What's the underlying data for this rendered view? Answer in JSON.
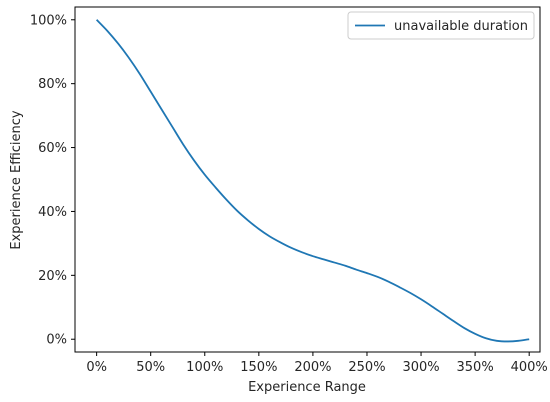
{
  "chart_data": {
    "type": "line",
    "xlabel": "Experience Range",
    "ylabel": "Experience Efficiency",
    "xlim": [
      -0.2,
      4.1
    ],
    "ylim": [
      -0.04,
      1.04
    ],
    "x_ticks": [
      {
        "value": 0.0,
        "label": "0%"
      },
      {
        "value": 0.5,
        "label": "50%"
      },
      {
        "value": 1.0,
        "label": "100%"
      },
      {
        "value": 1.5,
        "label": "150%"
      },
      {
        "value": 2.0,
        "label": "200%"
      },
      {
        "value": 2.5,
        "label": "250%"
      },
      {
        "value": 3.0,
        "label": "300%"
      },
      {
        "value": 3.5,
        "label": "350%"
      },
      {
        "value": 4.0,
        "label": "400%"
      }
    ],
    "y_ticks": [
      {
        "value": 0.0,
        "label": "0%"
      },
      {
        "value": 0.2,
        "label": "20%"
      },
      {
        "value": 0.4,
        "label": "40%"
      },
      {
        "value": 0.6,
        "label": "60%"
      },
      {
        "value": 0.8,
        "label": "80%"
      },
      {
        "value": 1.0,
        "label": "100%"
      }
    ],
    "grid": false,
    "legend_position": "top-right",
    "series": [
      {
        "name": "unavailable duration",
        "color": "#1f77b4",
        "x": [
          0.0,
          0.1,
          0.2,
          0.3,
          0.4,
          0.5,
          0.6,
          0.7,
          0.8,
          0.9,
          1.0,
          1.1,
          1.2,
          1.3,
          1.4,
          1.5,
          1.6,
          1.7,
          1.8,
          1.9,
          2.0,
          2.1,
          2.2,
          2.3,
          2.4,
          2.5,
          2.6,
          2.7,
          2.8,
          2.9,
          3.0,
          3.1,
          3.2,
          3.3,
          3.4,
          3.5,
          3.6,
          3.7,
          3.8,
          3.9,
          4.0
        ],
        "y": [
          1.0,
          0.965,
          0.925,
          0.88,
          0.83,
          0.775,
          0.72,
          0.665,
          0.61,
          0.56,
          0.515,
          0.475,
          0.437,
          0.402,
          0.372,
          0.345,
          0.322,
          0.303,
          0.286,
          0.272,
          0.26,
          0.25,
          0.24,
          0.23,
          0.218,
          0.207,
          0.195,
          0.18,
          0.163,
          0.145,
          0.125,
          0.103,
          0.08,
          0.057,
          0.035,
          0.017,
          0.003,
          -0.005,
          -0.007,
          -0.005,
          0.0
        ]
      }
    ]
  }
}
